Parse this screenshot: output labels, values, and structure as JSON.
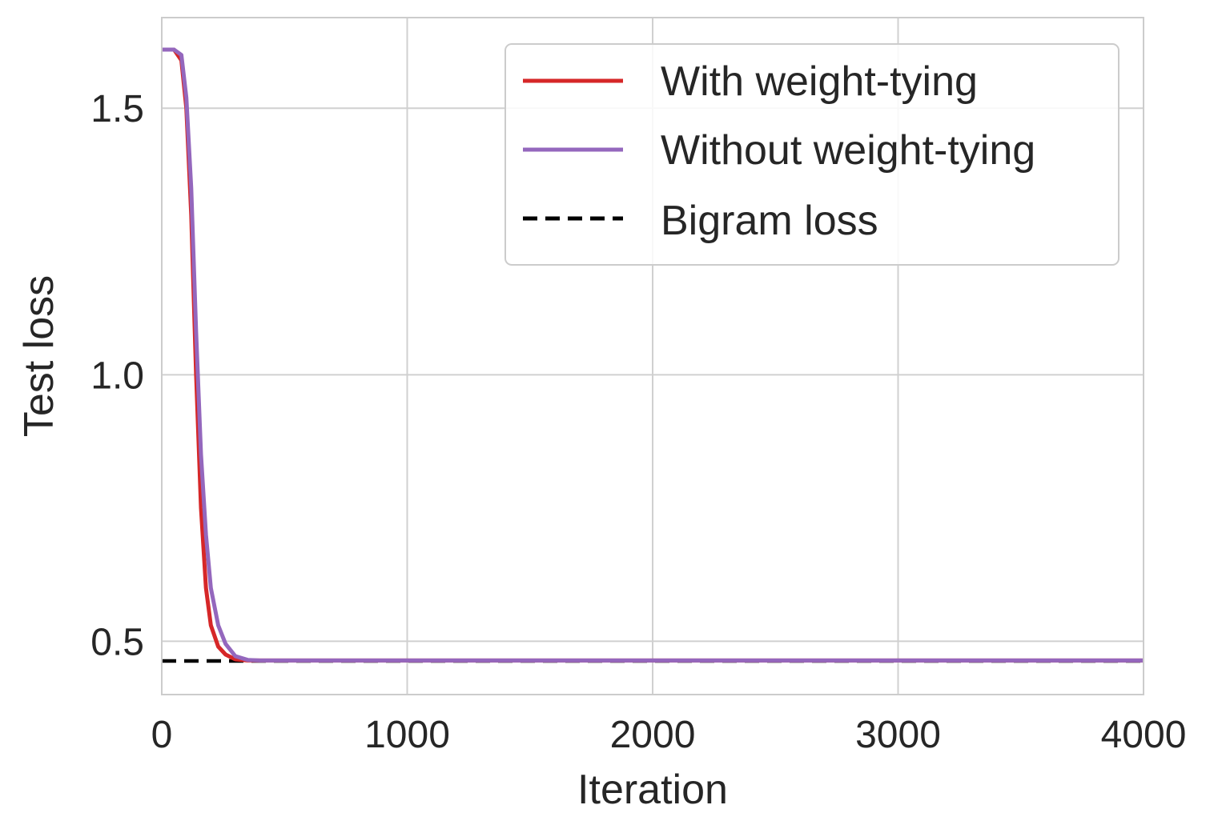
{
  "chart_data": {
    "type": "line",
    "title": "",
    "xlabel": "Iteration",
    "ylabel": "Test loss",
    "xlim": [
      0,
      4000
    ],
    "ylim": [
      0.4,
      1.67
    ],
    "xticks": [
      0,
      1000,
      2000,
      3000,
      4000
    ],
    "xtick_labels": [
      "0",
      "1000",
      "2000",
      "3000",
      "4000"
    ],
    "yticks": [
      0.5,
      1.0,
      1.5
    ],
    "ytick_labels": [
      "0.5",
      "1.0",
      "1.5"
    ],
    "grid": true,
    "legend_position": "top-right",
    "series": [
      {
        "name": "With weight-tying",
        "color": "#d62728",
        "style": "solid",
        "x": [
          0,
          50,
          80,
          100,
          120,
          140,
          160,
          180,
          200,
          230,
          260,
          300,
          350,
          400,
          500,
          1000,
          2000,
          3000,
          4000
        ],
        "y": [
          1.61,
          1.61,
          1.59,
          1.5,
          1.3,
          1.0,
          0.75,
          0.6,
          0.53,
          0.49,
          0.475,
          0.466,
          0.464,
          0.464,
          0.464,
          0.464,
          0.464,
          0.464,
          0.464
        ]
      },
      {
        "name": "Without weight-tying",
        "color": "#9467bd",
        "style": "solid",
        "x": [
          0,
          50,
          80,
          100,
          120,
          140,
          160,
          180,
          200,
          230,
          260,
          300,
          350,
          400,
          500,
          1000,
          2000,
          3000,
          4000
        ],
        "y": [
          1.61,
          1.61,
          1.6,
          1.52,
          1.35,
          1.08,
          0.85,
          0.7,
          0.6,
          0.53,
          0.495,
          0.472,
          0.465,
          0.464,
          0.464,
          0.464,
          0.464,
          0.464,
          0.464
        ]
      },
      {
        "name": "Bigram loss",
        "color": "#000000",
        "style": "dashed",
        "x": [
          0,
          4000
        ],
        "y": [
          0.463,
          0.463
        ]
      }
    ]
  }
}
